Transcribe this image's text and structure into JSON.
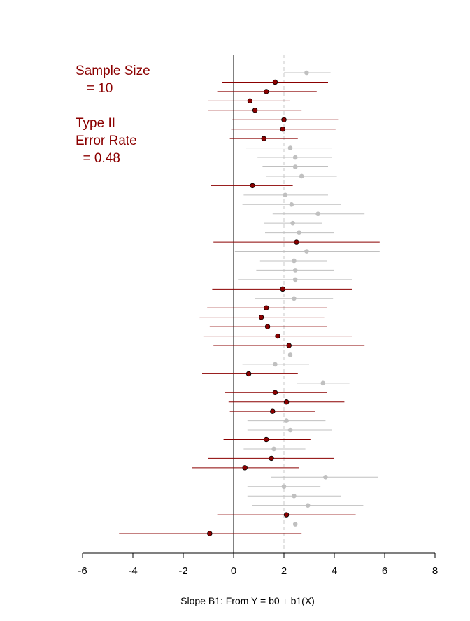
{
  "chart_data": {
    "type": "scatter",
    "subtype": "forest-plot (point estimates with interval whiskers)",
    "xlabel": "Slope B1: From Y = b0 + b1(X)",
    "xlim": [
      -6,
      8
    ],
    "xticks": [
      -6,
      -4,
      -2,
      0,
      2,
      4,
      6,
      8
    ],
    "reference_lines": {
      "zero": {
        "x": 0,
        "style": "solid",
        "color": "#000000"
      },
      "true_value": {
        "x": 2,
        "style": "dashed",
        "color": "#c8c8c8"
      }
    },
    "colors": {
      "significant": "#c0c0c0",
      "not_significant": "#8b0000"
    },
    "annotation_lines": [
      "Sample Size",
      "   = 10",
      "",
      "Type II",
      "Error Rate",
      "  = 0.48"
    ],
    "intervals": [
      {
        "est": 2.9,
        "lo": 2.0,
        "hi": 3.85,
        "ns": false
      },
      {
        "est": 1.65,
        "lo": -0.45,
        "hi": 3.75,
        "ns": true
      },
      {
        "est": 1.3,
        "lo": -0.65,
        "hi": 3.3,
        "ns": true
      },
      {
        "est": 0.65,
        "lo": -1.0,
        "hi": 2.25,
        "ns": true
      },
      {
        "est": 0.85,
        "lo": -1.0,
        "hi": 2.7,
        "ns": true
      },
      {
        "est": 2.0,
        "lo": -0.05,
        "hi": 4.15,
        "ns": true
      },
      {
        "est": 1.95,
        "lo": -0.1,
        "hi": 4.05,
        "ns": true
      },
      {
        "est": 1.2,
        "lo": -0.15,
        "hi": 2.55,
        "ns": true
      },
      {
        "est": 2.25,
        "lo": 0.5,
        "hi": 3.9,
        "ns": false
      },
      {
        "est": 2.45,
        "lo": 0.95,
        "hi": 3.9,
        "ns": false
      },
      {
        "est": 2.45,
        "lo": 1.15,
        "hi": 3.75,
        "ns": false
      },
      {
        "est": 2.7,
        "lo": 1.3,
        "hi": 4.1,
        "ns": false
      },
      {
        "est": 0.75,
        "lo": -0.9,
        "hi": 2.35,
        "ns": true
      },
      {
        "est": 2.05,
        "lo": 0.4,
        "hi": 3.75,
        "ns": false
      },
      {
        "est": 2.3,
        "lo": 0.35,
        "hi": 4.25,
        "ns": false
      },
      {
        "est": 3.35,
        "lo": 1.55,
        "hi": 5.2,
        "ns": false
      },
      {
        "est": 2.35,
        "lo": 1.2,
        "hi": 3.5,
        "ns": false
      },
      {
        "est": 2.6,
        "lo": 1.25,
        "hi": 4.0,
        "ns": false
      },
      {
        "est": 2.5,
        "lo": -0.8,
        "hi": 5.8,
        "ns": true
      },
      {
        "est": 2.9,
        "lo": 0.05,
        "hi": 5.8,
        "ns": false
      },
      {
        "est": 2.4,
        "lo": 1.05,
        "hi": 3.7,
        "ns": false
      },
      {
        "est": 2.45,
        "lo": 0.9,
        "hi": 4.0,
        "ns": false
      },
      {
        "est": 2.45,
        "lo": 0.2,
        "hi": 4.7,
        "ns": false
      },
      {
        "est": 1.95,
        "lo": -0.85,
        "hi": 4.7,
        "ns": true
      },
      {
        "est": 2.4,
        "lo": 0.85,
        "hi": 3.95,
        "ns": false
      },
      {
        "est": 1.3,
        "lo": -1.05,
        "hi": 3.7,
        "ns": true
      },
      {
        "est": 1.1,
        "lo": -1.35,
        "hi": 3.6,
        "ns": true
      },
      {
        "est": 1.35,
        "lo": -0.95,
        "hi": 3.7,
        "ns": true
      },
      {
        "est": 1.75,
        "lo": -1.2,
        "hi": 4.7,
        "ns": true
      },
      {
        "est": 2.2,
        "lo": -0.8,
        "hi": 5.2,
        "ns": true
      },
      {
        "est": 2.25,
        "lo": 0.6,
        "hi": 3.75,
        "ns": false
      },
      {
        "est": 1.65,
        "lo": 0.35,
        "hi": 3.0,
        "ns": false
      },
      {
        "est": 0.6,
        "lo": -1.25,
        "hi": 2.55,
        "ns": true
      },
      {
        "est": 3.55,
        "lo": 2.5,
        "hi": 4.6,
        "ns": false
      },
      {
        "est": 1.65,
        "lo": -0.35,
        "hi": 3.7,
        "ns": true
      },
      {
        "est": 2.1,
        "lo": -0.2,
        "hi": 4.4,
        "ns": true
      },
      {
        "est": 1.55,
        "lo": -0.15,
        "hi": 3.25,
        "ns": true
      },
      {
        "est": 2.1,
        "lo": 0.55,
        "hi": 3.65,
        "ns": false
      },
      {
        "est": 2.25,
        "lo": 0.55,
        "hi": 3.9,
        "ns": false
      },
      {
        "est": 1.3,
        "lo": -0.4,
        "hi": 3.05,
        "ns": true
      },
      {
        "est": 1.6,
        "lo": 0.4,
        "hi": 2.85,
        "ns": false
      },
      {
        "est": 1.5,
        "lo": -1.0,
        "hi": 4.0,
        "ns": true
      },
      {
        "est": 0.45,
        "lo": -1.65,
        "hi": 2.6,
        "ns": true
      },
      {
        "est": 3.65,
        "lo": 1.5,
        "hi": 5.75,
        "ns": false
      },
      {
        "est": 2.0,
        "lo": 0.55,
        "hi": 3.45,
        "ns": false
      },
      {
        "est": 2.4,
        "lo": 0.55,
        "hi": 4.25,
        "ns": false
      },
      {
        "est": 2.95,
        "lo": 0.75,
        "hi": 5.15,
        "ns": false
      },
      {
        "est": 2.1,
        "lo": -0.65,
        "hi": 4.85,
        "ns": true
      },
      {
        "est": 2.45,
        "lo": 0.5,
        "hi": 4.4,
        "ns": false
      },
      {
        "est": -0.95,
        "lo": -4.55,
        "hi": 2.7,
        "ns": true
      }
    ]
  }
}
